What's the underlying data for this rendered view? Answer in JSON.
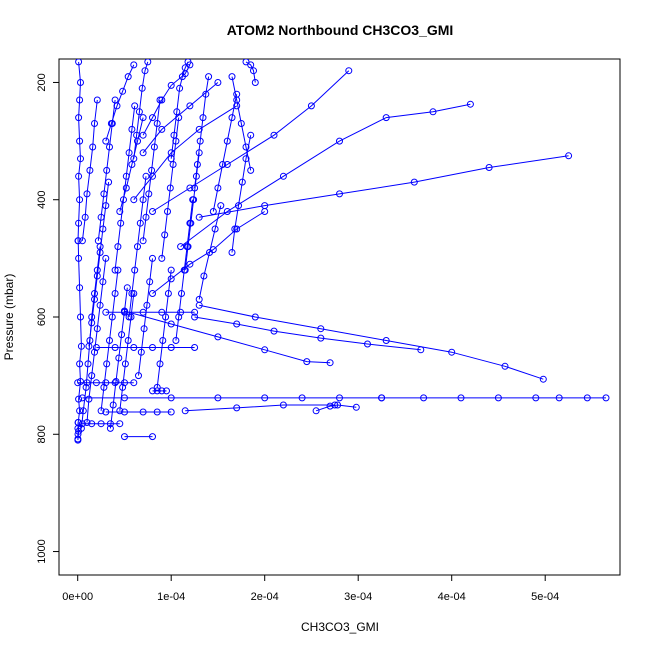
{
  "chart_data": {
    "type": "line",
    "title": "ATOM2 Northbound CH3CO3_GMI",
    "xlabel": "CH3CO3_GMI",
    "ylabel": "Pressure (mbar)",
    "xlim": [
      -2e-05,
      0.00058
    ],
    "ylim": [
      1040,
      160
    ],
    "y_reversed": true,
    "x_ticks": [
      0,
      0.0001,
      0.0002,
      0.0003,
      0.0004,
      0.0005
    ],
    "x_tick_labels": [
      "0e+00",
      "1e-04",
      "2e-04",
      "3e-04",
      "4e-04",
      "5e-04"
    ],
    "y_ticks": [
      200,
      400,
      600,
      800,
      1000
    ],
    "y_tick_labels": [
      "200",
      "400",
      "600",
      "800",
      "1000"
    ],
    "grid": false,
    "legend": "none",
    "marker": "open-circle",
    "series_color": "#0000ff",
    "series": [
      {
        "x": [
          2e-07,
          1e-06,
          5e-07,
          2e-06,
          1e-06,
          3e-06,
          2e-06,
          4e-06,
          3e-06,
          2e-06,
          1e-06,
          5e-07
        ],
        "y": [
          810,
          795,
          780,
          760,
          740,
          710,
          680,
          650,
          600,
          550,
          500,
          470
        ]
      },
      {
        "x": [
          3e-07,
          1e-06,
          2e-06,
          1e-06,
          3e-06,
          2e-06,
          1e-06,
          2e-06,
          3e-06,
          1e-06
        ],
        "y": [
          470,
          440,
          400,
          360,
          330,
          300,
          260,
          230,
          200,
          165
        ]
      },
      {
        "x": [
          4e-06,
          6e-06,
          9e-06,
          1.1e-05,
          1.3e-05,
          1.5e-05,
          1.8e-05,
          2.1e-05,
          2.4e-05
        ],
        "y": [
          790,
          760,
          720,
          680,
          640,
          600,
          560,
          520,
          480
        ]
      },
      {
        "x": [
          1e-05,
          1.2e-05,
          1.5e-05,
          1.8e-05,
          2.1e-05,
          2.4e-05,
          2.7e-05,
          3e-05
        ],
        "y": [
          780,
          740,
          700,
          660,
          620,
          580,
          540,
          500
        ]
      },
      {
        "x": [
          5e-06,
          8e-06,
          1e-05,
          1.3e-05,
          1.6e-05,
          1.8e-05,
          2.1e-05
        ],
        "y": [
          470,
          430,
          390,
          350,
          310,
          270,
          230
        ]
      },
      {
        "x": [
          1.2e-05,
          1.5e-05,
          1.8e-05,
          2.1e-05,
          2.4e-05,
          2.7e-05,
          3e-05,
          3.3e-05
        ],
        "y": [
          650,
          610,
          570,
          530,
          490,
          450,
          410,
          370
        ]
      },
      {
        "x": [
          2.5e-05,
          2.8e-05,
          3.1e-05,
          3.4e-05,
          3.7e-05,
          4e-05,
          4.3e-05
        ],
        "y": [
          760,
          720,
          680,
          640,
          600,
          560,
          520
        ]
      },
      {
        "x": [
          2.2e-05,
          2.5e-05,
          2.8e-05,
          3.1e-05,
          3.4e-05,
          3.7e-05,
          4e-05
        ],
        "y": [
          470,
          430,
          390,
          350,
          310,
          270,
          230
        ]
      },
      {
        "x": [
          3.5e-05,
          3.8e-05,
          4.1e-05,
          4.4e-05,
          4.7e-05,
          5e-05,
          5.3e-05
        ],
        "y": [
          790,
          750,
          710,
          670,
          630,
          590,
          550
        ]
      },
      {
        "x": [
          4e-05,
          4.3e-05,
          4.6e-05,
          4.9e-05,
          5.2e-05,
          5.5e-05,
          5.8e-05,
          6.1e-05
        ],
        "y": [
          520,
          480,
          440,
          400,
          360,
          320,
          280,
          240
        ]
      },
      {
        "x": [
          4.5e-05,
          4.8e-05,
          5.1e-05,
          5.4e-05,
          5.7e-05,
          6e-05
        ],
        "y": [
          760,
          720,
          680,
          640,
          600,
          560
        ]
      },
      {
        "x": [
          5.5e-05,
          5.8e-05,
          6.1e-05,
          6.4e-05,
          6.7e-05,
          7e-05,
          7.3e-05
        ],
        "y": [
          600,
          560,
          520,
          480,
          440,
          400,
          360
        ]
      },
      {
        "x": [
          6e-05,
          6.3e-05,
          6.6e-05,
          6.9e-05,
          7.2e-05,
          7.5e-05
        ],
        "y": [
          330,
          290,
          250,
          210,
          180,
          165
        ]
      },
      {
        "x": [
          6.5e-05,
          6.8e-05,
          7.1e-05,
          7.4e-05,
          7.7e-05,
          8e-05
        ],
        "y": [
          700,
          660,
          620,
          580,
          540,
          500
        ]
      },
      {
        "x": [
          7e-05,
          7.3e-05,
          7.6e-05,
          7.9e-05,
          8.2e-05,
          8.5e-05,
          8.8e-05
        ],
        "y": [
          470,
          430,
          390,
          350,
          310,
          270,
          230
        ]
      },
      {
        "x": [
          8.5e-05,
          8.8e-05,
          9.1e-05,
          9.4e-05,
          9.7e-05,
          0.0001
        ],
        "y": [
          720,
          680,
          640,
          600,
          560,
          520
        ]
      },
      {
        "x": [
          9e-05,
          9.3e-05,
          9.6e-05,
          9.9e-05,
          0.000102,
          0.000105,
          0.000108
        ],
        "y": [
          500,
          460,
          420,
          380,
          340,
          300,
          260
        ]
      },
      {
        "x": [
          0.0001,
          0.000103,
          0.000106,
          0.000109,
          0.000112,
          0.000115,
          0.000118
        ],
        "y": [
          330,
          290,
          250,
          210,
          190,
          175,
          165
        ]
      },
      {
        "x": [
          0.000105,
          0.000108,
          0.000111,
          0.000114,
          0.000117,
          0.00012,
          0.000123
        ],
        "y": [
          640,
          600,
          560,
          520,
          480,
          440,
          400
        ]
      },
      {
        "x": [
          0.000115,
          0.000118,
          0.000121,
          0.000124,
          0.000127,
          0.00013
        ],
        "y": [
          520,
          480,
          440,
          400,
          360,
          320
        ]
      },
      {
        "x": [
          0.000125,
          0.000128,
          0.000131,
          0.000134,
          0.000137,
          0.00014
        ],
        "y": [
          380,
          340,
          300,
          260,
          220,
          190
        ]
      },
      {
        "x": [
          0.00013,
          0.000135,
          0.000141,
          0.000147,
          0.000153
        ],
        "y": [
          570,
          530,
          490,
          450,
          410
        ]
      },
      {
        "x": [
          0.000145,
          0.00015,
          0.000155,
          0.00016,
          0.000165,
          0.00017
        ],
        "y": [
          420,
          380,
          340,
          300,
          260,
          220
        ]
      },
      {
        "x": [
          0.000165,
          0.000168,
          0.000172,
          0.000176,
          0.00018,
          0.000185
        ],
        "y": [
          490,
          450,
          410,
          370,
          330,
          290
        ]
      },
      {
        "x": [
          0.000185,
          0.00018,
          0.000175,
          0.00017,
          0.000165
        ],
        "y": [
          350,
          310,
          270,
          230,
          190
        ]
      },
      {
        "x": [
          0.00019,
          0.000188,
          0.000185,
          0.00018
        ],
        "y": [
          200,
          180,
          170,
          165
        ]
      },
      {
        "x": [
          8e-05,
          0.00012,
          0.00016,
          0.00021,
          0.00025,
          0.00029
        ],
        "y": [
          420,
          380,
          340,
          290,
          240,
          180
        ]
      },
      {
        "x": [
          0.00011,
          0.00016,
          0.00022,
          0.00028,
          0.00033,
          0.00038,
          0.00042
        ],
        "y": [
          480,
          420,
          360,
          300,
          260,
          250,
          237
        ]
      },
      {
        "x": [
          0.00013,
          0.0002,
          0.00028,
          0.00036,
          0.00044,
          0.000525
        ],
        "y": [
          430,
          410,
          390,
          370,
          345,
          325
        ]
      },
      {
        "x": [
          8e-05,
          0.0001,
          0.00012,
          0.000145,
          0.00017,
          0.0002
        ],
        "y": [
          560,
          535,
          510,
          485,
          450,
          420
        ]
      },
      {
        "x": [
          5e-06,
          5e-05,
          0.0001,
          0.00015,
          0.0002,
          0.00024,
          0.00028,
          0.000325
        ],
        "y": [
          738,
          738,
          738,
          738,
          738,
          738,
          738,
          738
        ]
      },
      {
        "x": [
          0.000325,
          0.00037,
          0.00041,
          0.00045,
          0.00049,
          0.000515,
          0.000545,
          0.000565
        ],
        "y": [
          738,
          738,
          738,
          738,
          738,
          738,
          738,
          738
        ]
      },
      {
        "x": [
          0.000115,
          0.00017,
          0.00022,
          0.000275
        ],
        "y": [
          760,
          755,
          750,
          750
        ]
      },
      {
        "x": [
          0.000255,
          0.00027,
          0.000278,
          0.000298
        ],
        "y": [
          760,
          752,
          750,
          754
        ]
      },
      {
        "x": [
          5e-05,
          0.0001,
          0.00015,
          0.0002,
          0.000245,
          0.00027
        ],
        "y": [
          590,
          612,
          634,
          656,
          676,
          678
        ]
      },
      {
        "x": [
          0.000125,
          0.00017,
          0.00021,
          0.00026,
          0.00031,
          0.000367
        ],
        "y": [
          600,
          612,
          624,
          636,
          646,
          656
        ]
      },
      {
        "x": [
          0.00013,
          0.00019,
          0.00026,
          0.00033,
          0.0004,
          0.000457,
          0.000498
        ],
        "y": [
          580,
          600,
          620,
          640,
          660,
          684,
          706
        ]
      },
      {
        "x": [
          0.0,
          1e-05,
          2e-05,
          3e-05,
          4e-05,
          5e-05,
          6e-05
        ],
        "y": [
          712,
          712,
          712,
          712,
          712,
          712,
          712
        ]
      },
      {
        "x": [
          2e-05,
          4e-05,
          6e-05,
          8e-05,
          0.0001,
          0.000125
        ],
        "y": [
          652,
          652,
          652,
          652,
          652,
          652
        ]
      },
      {
        "x": [
          3e-05,
          5e-05,
          7e-05,
          9e-05,
          0.00011,
          0.000125
        ],
        "y": [
          592,
          592,
          592,
          592,
          592,
          592
        ]
      },
      {
        "x": [
          5e-06,
          1.5e-05,
          2.5e-05,
          3.5e-05,
          4.5e-05
        ],
        "y": [
          782,
          782,
          782,
          782,
          782
        ]
      },
      {
        "x": [
          3e-05,
          5e-05,
          7e-05,
          8.5e-05,
          0.0001
        ],
        "y": [
          762,
          762,
          762,
          762,
          762
        ]
      },
      {
        "x": [
          8e-05,
          8.5e-05,
          9e-05,
          9.5e-05
        ],
        "y": [
          726,
          726,
          726,
          726
        ]
      },
      {
        "x": [
          5e-05,
          8e-05
        ],
        "y": [
          804,
          804
        ]
      },
      {
        "x": [
          7e-05,
          8e-05,
          9e-05,
          0.0001,
          0.000115,
          0.00012
        ],
        "y": [
          290,
          260,
          230,
          205,
          185,
          170
        ]
      },
      {
        "x": [
          3e-05,
          3.6e-05,
          4.2e-05,
          4.8e-05,
          5.4e-05,
          6e-05
        ],
        "y": [
          300,
          270,
          240,
          215,
          190,
          170
        ]
      },
      {
        "x": [
          4.5e-05,
          5.2e-05,
          5.8e-05,
          6.4e-05,
          7e-05
        ],
        "y": [
          420,
          380,
          340,
          300,
          260
        ]
      },
      {
        "x": [
          2e-07,
          3e-07,
          2e-07,
          4e-07
        ],
        "y": [
          808,
          800,
          790,
          780
        ]
      },
      {
        "x": [
          0.00017,
          0.00013,
          0.0001,
          8e-05,
          6e-05
        ],
        "y": [
          240,
          280,
          320,
          360,
          400
        ]
      },
      {
        "x": [
          0.00015,
          0.00012,
          9e-05,
          7e-05
        ],
        "y": [
          200,
          240,
          280,
          320
        ]
      }
    ]
  }
}
